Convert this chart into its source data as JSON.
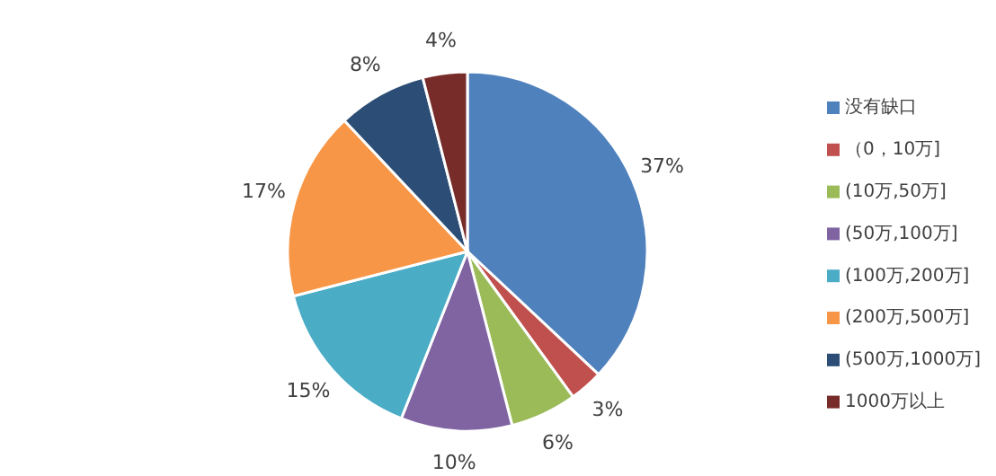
{
  "chart_data": {
    "type": "pie",
    "categories": [
      "没有缺口",
      "（0，10万]",
      "(10万,50万]",
      "(50万,100万]",
      "(100万,200万]",
      "(200万,500万]",
      "(500万,1000万]",
      "1000万以上"
    ],
    "values": [
      37,
      3,
      6,
      10,
      15,
      17,
      8,
      4
    ],
    "colors": [
      "#4f81bd",
      "#c0504d",
      "#9bbb59",
      "#8064a2",
      "#4bacc6",
      "#f79646",
      "#2c4d75",
      "#772c2a"
    ],
    "value_labels": [
      "37%",
      "3%",
      "6%",
      "10%",
      "15%",
      "17%",
      "8%",
      "4%"
    ],
    "legend": "right"
  }
}
